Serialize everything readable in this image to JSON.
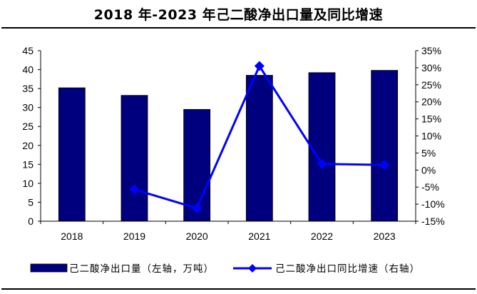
{
  "chart_data": {
    "type": "bar+line",
    "title": "2018 年-2023 年己二酸净出口量及同比增速",
    "categories": [
      "2018",
      "2019",
      "2020",
      "2021",
      "2022",
      "2023"
    ],
    "series": [
      {
        "name": "己二酸净出口量（左轴，万吨）",
        "type": "bar",
        "axis": "left",
        "color": "#00007f",
        "values": [
          35.2,
          33.2,
          29.5,
          38.5,
          39.2,
          39.8
        ]
      },
      {
        "name": "己二酸净出口同比增速（右轴）",
        "type": "line",
        "axis": "right",
        "color": "#0000ff",
        "marker": "diamond",
        "values": [
          null,
          -5.7,
          -11.2,
          30.5,
          1.8,
          1.5
        ]
      }
    ],
    "y_left": {
      "min": 0,
      "max": 45,
      "step": 5,
      "ticks": [
        "0",
        "5",
        "10",
        "15",
        "20",
        "25",
        "30",
        "35",
        "40",
        "45"
      ]
    },
    "y_right": {
      "min": -15,
      "max": 35,
      "step": 5,
      "ticks": [
        "-15%",
        "-10%",
        "-5%",
        "0%",
        "5%",
        "10%",
        "15%",
        "20%",
        "25%",
        "30%",
        "35%"
      ]
    },
    "grid": false,
    "legend_position": "bottom"
  }
}
